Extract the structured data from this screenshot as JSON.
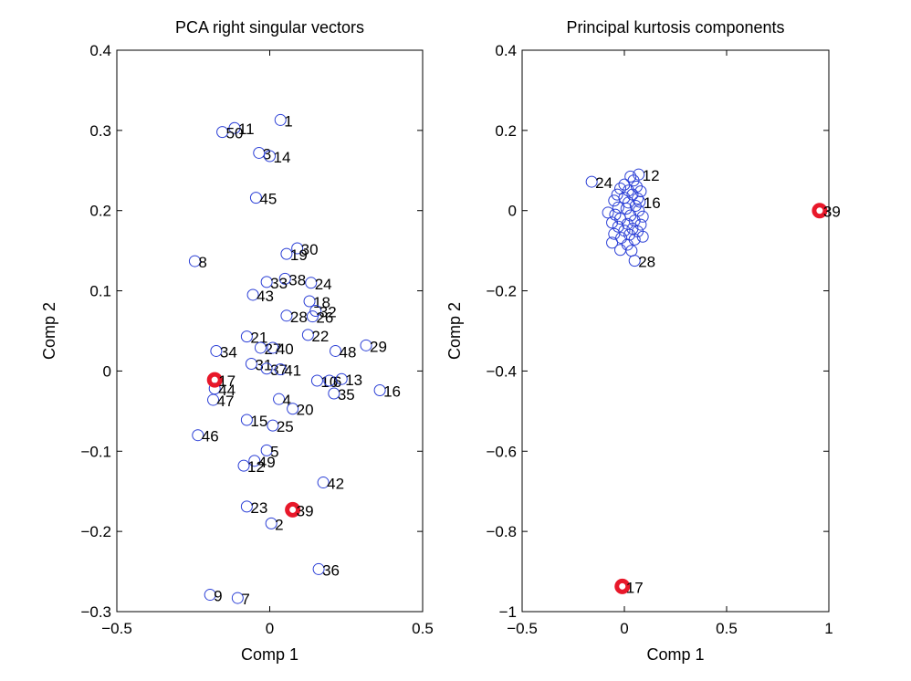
{
  "chart_data": [
    {
      "type": "scatter",
      "title": "PCA right singular vectors",
      "xlabel": "Comp 1",
      "ylabel": "Comp 2",
      "xlim": [
        -0.5,
        0.5
      ],
      "ylim": [
        -0.3,
        0.4
      ],
      "xticks": [
        -0.5,
        0,
        0.5
      ],
      "xtick_labels": [
        "−0.5",
        "0",
        "0.5"
      ],
      "yticks": [
        -0.3,
        -0.2,
        -0.1,
        0,
        0.1,
        0.2,
        0.3,
        0.4
      ],
      "ytick_labels": [
        "−0.3",
        "−0.2",
        "−0.1",
        "0",
        "0.1",
        "0.2",
        "0.3",
        "0.4"
      ],
      "grid": false,
      "marker_color": "#2b3fd6",
      "highlight_color": "#e8182a",
      "points": [
        {
          "label": "1",
          "x": 0.035,
          "y": 0.313
        },
        {
          "label": "11",
          "x": -0.115,
          "y": 0.303
        },
        {
          "label": "50",
          "x": -0.155,
          "y": 0.298
        },
        {
          "label": "3",
          "x": -0.035,
          "y": 0.272
        },
        {
          "label": "14",
          "x": 0.0,
          "y": 0.268
        },
        {
          "label": "45",
          "x": -0.045,
          "y": 0.216
        },
        {
          "label": "8",
          "x": -0.245,
          "y": 0.137
        },
        {
          "label": "30",
          "x": 0.09,
          "y": 0.153
        },
        {
          "label": "19",
          "x": 0.055,
          "y": 0.146
        },
        {
          "label": "38",
          "x": 0.05,
          "y": 0.115
        },
        {
          "label": "33",
          "x": -0.01,
          "y": 0.111
        },
        {
          "label": "24",
          "x": 0.135,
          "y": 0.11
        },
        {
          "label": "43",
          "x": -0.055,
          "y": 0.095
        },
        {
          "label": "18",
          "x": 0.13,
          "y": 0.087
        },
        {
          "label": "32",
          "x": 0.15,
          "y": 0.075
        },
        {
          "label": "28",
          "x": 0.055,
          "y": 0.069
        },
        {
          "label": "26",
          "x": 0.14,
          "y": 0.068
        },
        {
          "label": "21",
          "x": -0.075,
          "y": 0.043
        },
        {
          "label": "22",
          "x": 0.125,
          "y": 0.045
        },
        {
          "label": "27",
          "x": -0.03,
          "y": 0.029
        },
        {
          "label": "40",
          "x": 0.01,
          "y": 0.029
        },
        {
          "label": "34",
          "x": -0.175,
          "y": 0.025
        },
        {
          "label": "48",
          "x": 0.215,
          "y": 0.025
        },
        {
          "label": "29",
          "x": 0.315,
          "y": 0.032
        },
        {
          "label": "31",
          "x": -0.06,
          "y": 0.009
        },
        {
          "label": "37",
          "x": -0.01,
          "y": 0.003
        },
        {
          "label": "41",
          "x": 0.035,
          "y": 0.002
        },
        {
          "label": "17",
          "x": -0.18,
          "y": -0.011,
          "highlight": true
        },
        {
          "label": "44",
          "x": -0.18,
          "y": -0.022
        },
        {
          "label": "10",
          "x": 0.155,
          "y": -0.012
        },
        {
          "label": "6",
          "x": 0.195,
          "y": -0.012
        },
        {
          "label": "13",
          "x": 0.235,
          "y": -0.01
        },
        {
          "label": "35",
          "x": 0.21,
          "y": -0.028
        },
        {
          "label": "16",
          "x": 0.36,
          "y": -0.024
        },
        {
          "label": "47",
          "x": -0.185,
          "y": -0.036
        },
        {
          "label": "4",
          "x": 0.03,
          "y": -0.035
        },
        {
          "label": "20",
          "x": 0.075,
          "y": -0.047
        },
        {
          "label": "15",
          "x": -0.075,
          "y": -0.061
        },
        {
          "label": "25",
          "x": 0.01,
          "y": -0.068
        },
        {
          "label": "46",
          "x": -0.235,
          "y": -0.08
        },
        {
          "label": "5",
          "x": -0.01,
          "y": -0.099
        },
        {
          "label": "49",
          "x": -0.05,
          "y": -0.112
        },
        {
          "label": "12",
          "x": -0.085,
          "y": -0.118
        },
        {
          "label": "42",
          "x": 0.175,
          "y": -0.139
        },
        {
          "label": "23",
          "x": -0.075,
          "y": -0.169
        },
        {
          "label": "39",
          "x": 0.075,
          "y": -0.173,
          "highlight": true
        },
        {
          "label": "2",
          "x": 0.005,
          "y": -0.19
        },
        {
          "label": "36",
          "x": 0.16,
          "y": -0.247
        },
        {
          "label": "9",
          "x": -0.195,
          "y": -0.279
        },
        {
          "label": "7",
          "x": -0.105,
          "y": -0.283
        }
      ]
    },
    {
      "type": "scatter",
      "title": "Principal kurtosis components",
      "xlabel": "Comp 1",
      "ylabel": "Comp 2",
      "xlim": [
        -0.5,
        1
      ],
      "ylim": [
        -1,
        0.4
      ],
      "xticks": [
        -0.5,
        0,
        0.5,
        1
      ],
      "xtick_labels": [
        "−0.5",
        "0",
        "0.5",
        "1"
      ],
      "yticks": [
        -1,
        -0.8,
        -0.6,
        -0.4,
        -0.2,
        0,
        0.2,
        0.4
      ],
      "ytick_labels": [
        "−1",
        "−0.8",
        "−0.6",
        "−0.4",
        "−0.2",
        "0",
        "0.2",
        "0.4"
      ],
      "grid": false,
      "marker_color": "#2b3fd6",
      "highlight_color": "#e8182a",
      "points": [
        {
          "label": "39",
          "x": 0.955,
          "y": 0.0,
          "highlight": true
        },
        {
          "label": "17",
          "x": -0.01,
          "y": -0.937,
          "highlight": true
        },
        {
          "label": "24",
          "x": -0.16,
          "y": 0.072
        },
        {
          "label": "12",
          "x": 0.07,
          "y": 0.09
        },
        {
          "label": "16",
          "x": 0.075,
          "y": 0.022
        },
        {
          "label": "28",
          "x": 0.05,
          "y": -0.125
        },
        {
          "label": "",
          "x": 0.03,
          "y": 0.085
        },
        {
          "label": "",
          "x": 0.045,
          "y": 0.075
        },
        {
          "label": "",
          "x": 0.0,
          "y": 0.065
        },
        {
          "label": "",
          "x": 0.06,
          "y": 0.06
        },
        {
          "label": "",
          "x": -0.02,
          "y": 0.055
        },
        {
          "label": "",
          "x": 0.02,
          "y": 0.05
        },
        {
          "label": "",
          "x": 0.08,
          "y": 0.048
        },
        {
          "label": "",
          "x": -0.035,
          "y": 0.04
        },
        {
          "label": "",
          "x": 0.04,
          "y": 0.04
        },
        {
          "label": "",
          "x": 0.0,
          "y": 0.032
        },
        {
          "label": "",
          "x": 0.065,
          "y": 0.03
        },
        {
          "label": "",
          "x": -0.05,
          "y": 0.025
        },
        {
          "label": "",
          "x": 0.02,
          "y": 0.02
        },
        {
          "label": "",
          "x": 0.055,
          "y": 0.012
        },
        {
          "label": "",
          "x": -0.03,
          "y": 0.008
        },
        {
          "label": "",
          "x": 0.01,
          "y": 0.005
        },
        {
          "label": "",
          "x": 0.07,
          "y": 0.0
        },
        {
          "label": "",
          "x": -0.08,
          "y": -0.005
        },
        {
          "label": "",
          "x": -0.045,
          "y": -0.01
        },
        {
          "label": "",
          "x": 0.03,
          "y": -0.012
        },
        {
          "label": "",
          "x": 0.09,
          "y": -0.015
        },
        {
          "label": "",
          "x": -0.02,
          "y": -0.02
        },
        {
          "label": "",
          "x": 0.05,
          "y": -0.025
        },
        {
          "label": "",
          "x": -0.06,
          "y": -0.03
        },
        {
          "label": "",
          "x": 0.015,
          "y": -0.033
        },
        {
          "label": "",
          "x": 0.08,
          "y": -0.035
        },
        {
          "label": "",
          "x": -0.03,
          "y": -0.04
        },
        {
          "label": "",
          "x": 0.04,
          "y": -0.045
        },
        {
          "label": "",
          "x": 0.0,
          "y": -0.05
        },
        {
          "label": "",
          "x": 0.065,
          "y": -0.052
        },
        {
          "label": "",
          "x": -0.05,
          "y": -0.058
        },
        {
          "label": "",
          "x": 0.025,
          "y": -0.06
        },
        {
          "label": "",
          "x": 0.09,
          "y": -0.065
        },
        {
          "label": "",
          "x": -0.015,
          "y": -0.068
        },
        {
          "label": "",
          "x": 0.05,
          "y": -0.072
        },
        {
          "label": "",
          "x": -0.06,
          "y": -0.08
        },
        {
          "label": "",
          "x": 0.015,
          "y": -0.085
        },
        {
          "label": "",
          "x": -0.02,
          "y": -0.098
        },
        {
          "label": "",
          "x": 0.035,
          "y": -0.1
        }
      ]
    }
  ]
}
